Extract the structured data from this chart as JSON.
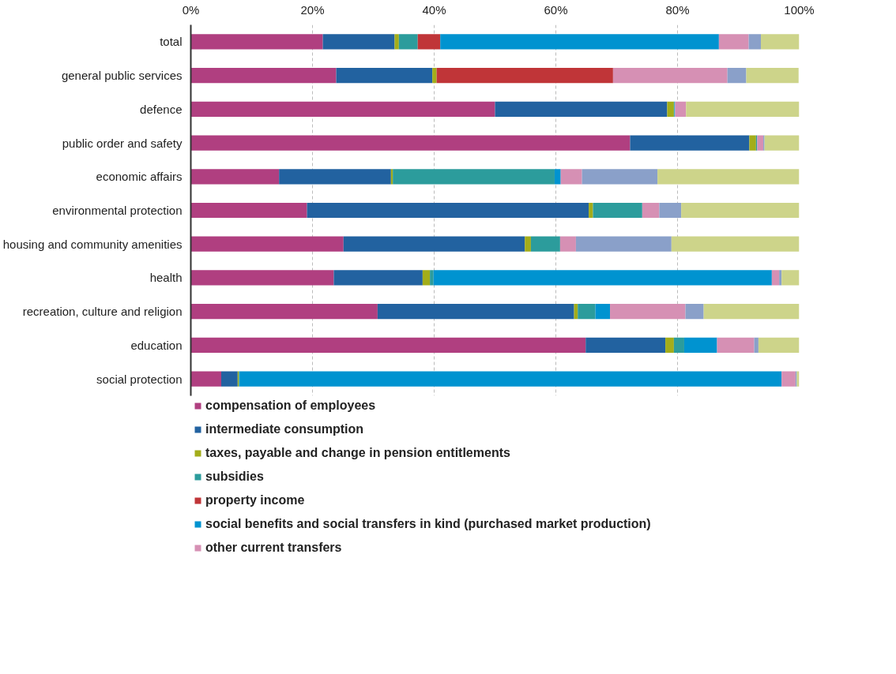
{
  "chart_data": {
    "type": "bar",
    "orientation": "horizontal",
    "stacked": true,
    "categories": [
      "total",
      "general public services",
      "defence",
      "public order and safety",
      "economic affairs",
      "environmental protection",
      "housing and community amenities",
      "health",
      "recreation, culture and religion",
      "education",
      "social protection"
    ],
    "series": [
      {
        "name": "compensation of employees",
        "color": "#b03f80",
        "values": [
          21.7,
          23.9,
          50.0,
          72.2,
          14.5,
          19.1,
          25.1,
          23.5,
          30.7,
          64.9,
          5.0
        ]
      },
      {
        "name": "intermediate consumption",
        "color": "#2262a0",
        "values": [
          11.8,
          15.8,
          28.3,
          19.6,
          18.4,
          46.3,
          29.8,
          14.6,
          32.3,
          13.1,
          2.7
        ]
      },
      {
        "name": "taxes, payable and change in pension entitlements",
        "color": "#a3ad1a",
        "values": [
          0.7,
          0.7,
          1.1,
          1.1,
          0.3,
          0.7,
          1.0,
          1.2,
          0.6,
          1.4,
          0.2
        ]
      },
      {
        "name": "subsidies",
        "color": "#2c9c9c",
        "values": [
          3.1,
          null,
          0.1,
          0.2,
          26.6,
          8.1,
          4.8,
          0.6,
          2.9,
          1.7,
          0.1
        ]
      },
      {
        "name": "property income",
        "color": "#c03538",
        "values": [
          3.7,
          29.0,
          0,
          0,
          0,
          0,
          0,
          0,
          0,
          0,
          0
        ]
      },
      {
        "name": "social benefits and social transfers in kind (purchased market production)",
        "color": "#0093d0",
        "values": [
          45.8,
          0,
          0.1,
          0,
          1.0,
          0,
          0,
          55.6,
          2.4,
          5.4,
          89.1
        ]
      },
      {
        "name": "other current transfers",
        "color": "#d690b4",
        "values": [
          4.9,
          18.8,
          1.8,
          1.0,
          3.5,
          2.8,
          2.6,
          1.2,
          12.4,
          6.1,
          2.3
        ]
      },
      {
        "color": "#8aa0c9",
        "values": [
          2.0,
          3.1,
          0,
          0.2,
          12.4,
          3.6,
          15.7,
          0.4,
          3.0,
          0.7,
          0.2
        ]
      },
      {
        "color": "#cdd48a",
        "values": [
          6.3,
          8.6,
          18.6,
          5.7,
          23.3,
          19.4,
          21.0,
          2.9,
          15.7,
          6.7,
          0.4
        ]
      }
    ],
    "xlim": [
      0,
      100
    ],
    "xticks": [
      {
        "value": 0,
        "label": "0%"
      },
      {
        "value": 20,
        "label": "20%"
      },
      {
        "value": 40,
        "label": "40%"
      },
      {
        "value": 60,
        "label": "60%"
      },
      {
        "value": 80,
        "label": "80%"
      },
      {
        "value": 100,
        "label": "100%"
      }
    ],
    "grid": "x",
    "legend": "bottom"
  }
}
